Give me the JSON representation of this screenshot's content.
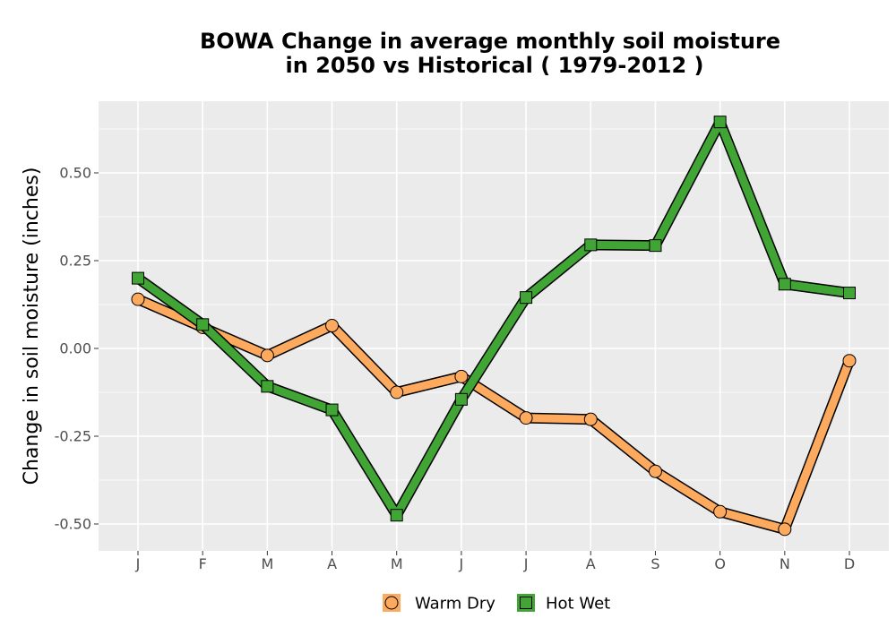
{
  "chart_data": {
    "type": "line",
    "title_line1": "BOWA  Change in average monthly soil moisture",
    "title_line2": "in 2050 vs Historical ( 1979-2012 )",
    "xlabel": "",
    "ylabel": "Change in soil moisture (inches)",
    "categories": [
      "J",
      "F",
      "M",
      "A",
      "M",
      "J",
      "J",
      "A",
      "S",
      "O",
      "N",
      "D"
    ],
    "ylim": [
      -0.57,
      0.7
    ],
    "yticks": [
      -0.5,
      -0.25,
      0.0,
      0.25,
      0.5
    ],
    "ytick_labels": [
      "-0.50",
      "-0.25",
      "0.00",
      "0.25",
      "0.50"
    ],
    "grid": true,
    "legend_position": "bottom",
    "series": [
      {
        "name": "Warm Dry",
        "marker": "circle",
        "color": "#FDAA5E",
        "values": [
          0.14,
          0.06,
          -0.02,
          0.065,
          -0.125,
          -0.08,
          -0.198,
          -0.202,
          -0.35,
          -0.465,
          -0.515,
          -0.035
        ]
      },
      {
        "name": "Hot Wet",
        "marker": "square",
        "color": "#41A535",
        "values": [
          0.2,
          0.068,
          -0.108,
          -0.175,
          -0.475,
          -0.145,
          0.145,
          0.295,
          0.293,
          0.645,
          0.183,
          0.158
        ]
      }
    ],
    "colors": {
      "panel": "#EBEBEB",
      "grid": "#FFFFFF",
      "outline": "#000000"
    }
  }
}
